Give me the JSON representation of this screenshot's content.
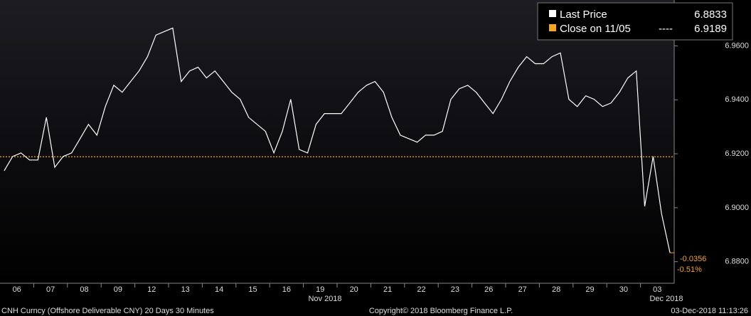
{
  "chart_data": {
    "type": "line",
    "categories": [
      null,
      "06",
      null,
      null,
      null,
      "07",
      null,
      null,
      null,
      "08",
      null,
      null,
      null,
      "09",
      null,
      null,
      null,
      "12",
      null,
      null,
      null,
      "13",
      null,
      null,
      null,
      "14",
      null,
      null,
      null,
      "15",
      null,
      null,
      null,
      "16",
      null,
      null,
      null,
      "19",
      null,
      null,
      null,
      "20",
      null,
      null,
      null,
      "21",
      null,
      null,
      null,
      "22",
      null,
      null,
      null,
      "23",
      null,
      null,
      null,
      "26",
      null,
      null,
      null,
      "27",
      null,
      null,
      null,
      "28",
      null,
      null,
      null,
      "29",
      null,
      null,
      null,
      "30",
      null,
      null,
      null,
      "03",
      null,
      null
    ],
    "series": [
      {
        "name": "Last Price",
        "color": "#ffffff",
        "values": [
          6.9137,
          6.919,
          6.9203,
          6.9177,
          6.9177,
          6.9335,
          6.915,
          6.919,
          6.9203,
          6.9256,
          6.9309,
          6.9269,
          6.9375,
          6.9454,
          6.9428,
          6.9468,
          6.9507,
          6.956,
          6.964,
          6.9653,
          6.9666,
          6.9468,
          6.9507,
          6.9521,
          6.9481,
          6.9507,
          6.9468,
          6.9428,
          6.9402,
          6.9335,
          6.9309,
          6.9283,
          6.9203,
          6.9283,
          6.9402,
          6.9216,
          6.9203,
          6.9309,
          6.9349,
          6.9349,
          6.9349,
          6.9388,
          6.9428,
          6.9454,
          6.9468,
          6.9428,
          6.9335,
          6.9269,
          6.9256,
          6.9243,
          6.9269,
          6.9269,
          6.9283,
          6.9402,
          6.9441,
          6.9454,
          6.9428,
          6.9388,
          6.9349,
          6.9402,
          6.9468,
          6.9521,
          6.956,
          6.9534,
          6.9534,
          6.956,
          6.9574,
          6.9402,
          6.9375,
          6.9415,
          6.9402,
          6.9375,
          6.9388,
          6.9428,
          6.9481,
          6.9507,
          6.9005,
          6.919,
          6.8978,
          6.8833
        ]
      }
    ],
    "reference_line": {
      "name": "Close on 11/05",
      "separator": "----",
      "value": 6.9189,
      "color": "#f5a623"
    },
    "change_labels": [
      -0.0356,
      {
        "value": -0.51,
        "label": "-0.51%"
      }
    ],
    "month_labels": [
      "Nov 2018",
      "Dec 2018"
    ],
    "ylim": [
      6.872,
      6.977
    ],
    "yticks": [
      {
        "value": 6.88,
        "label": "6.8800"
      },
      {
        "value": 6.9,
        "label": "6.9000"
      },
      {
        "value": 6.92,
        "label": "6.9200"
      },
      {
        "value": 6.94,
        "label": "6.9400"
      },
      {
        "value": 6.96,
        "label": "6.9600"
      }
    ],
    "footer": {
      "left": "CNH Curncy (Offshore Deliverable CNY) 20 Days 30 Minutes",
      "center": "Copyright© 2018 Bloomberg Finance L.P.",
      "right": "03-Dec-2018 11:13:26"
    }
  }
}
